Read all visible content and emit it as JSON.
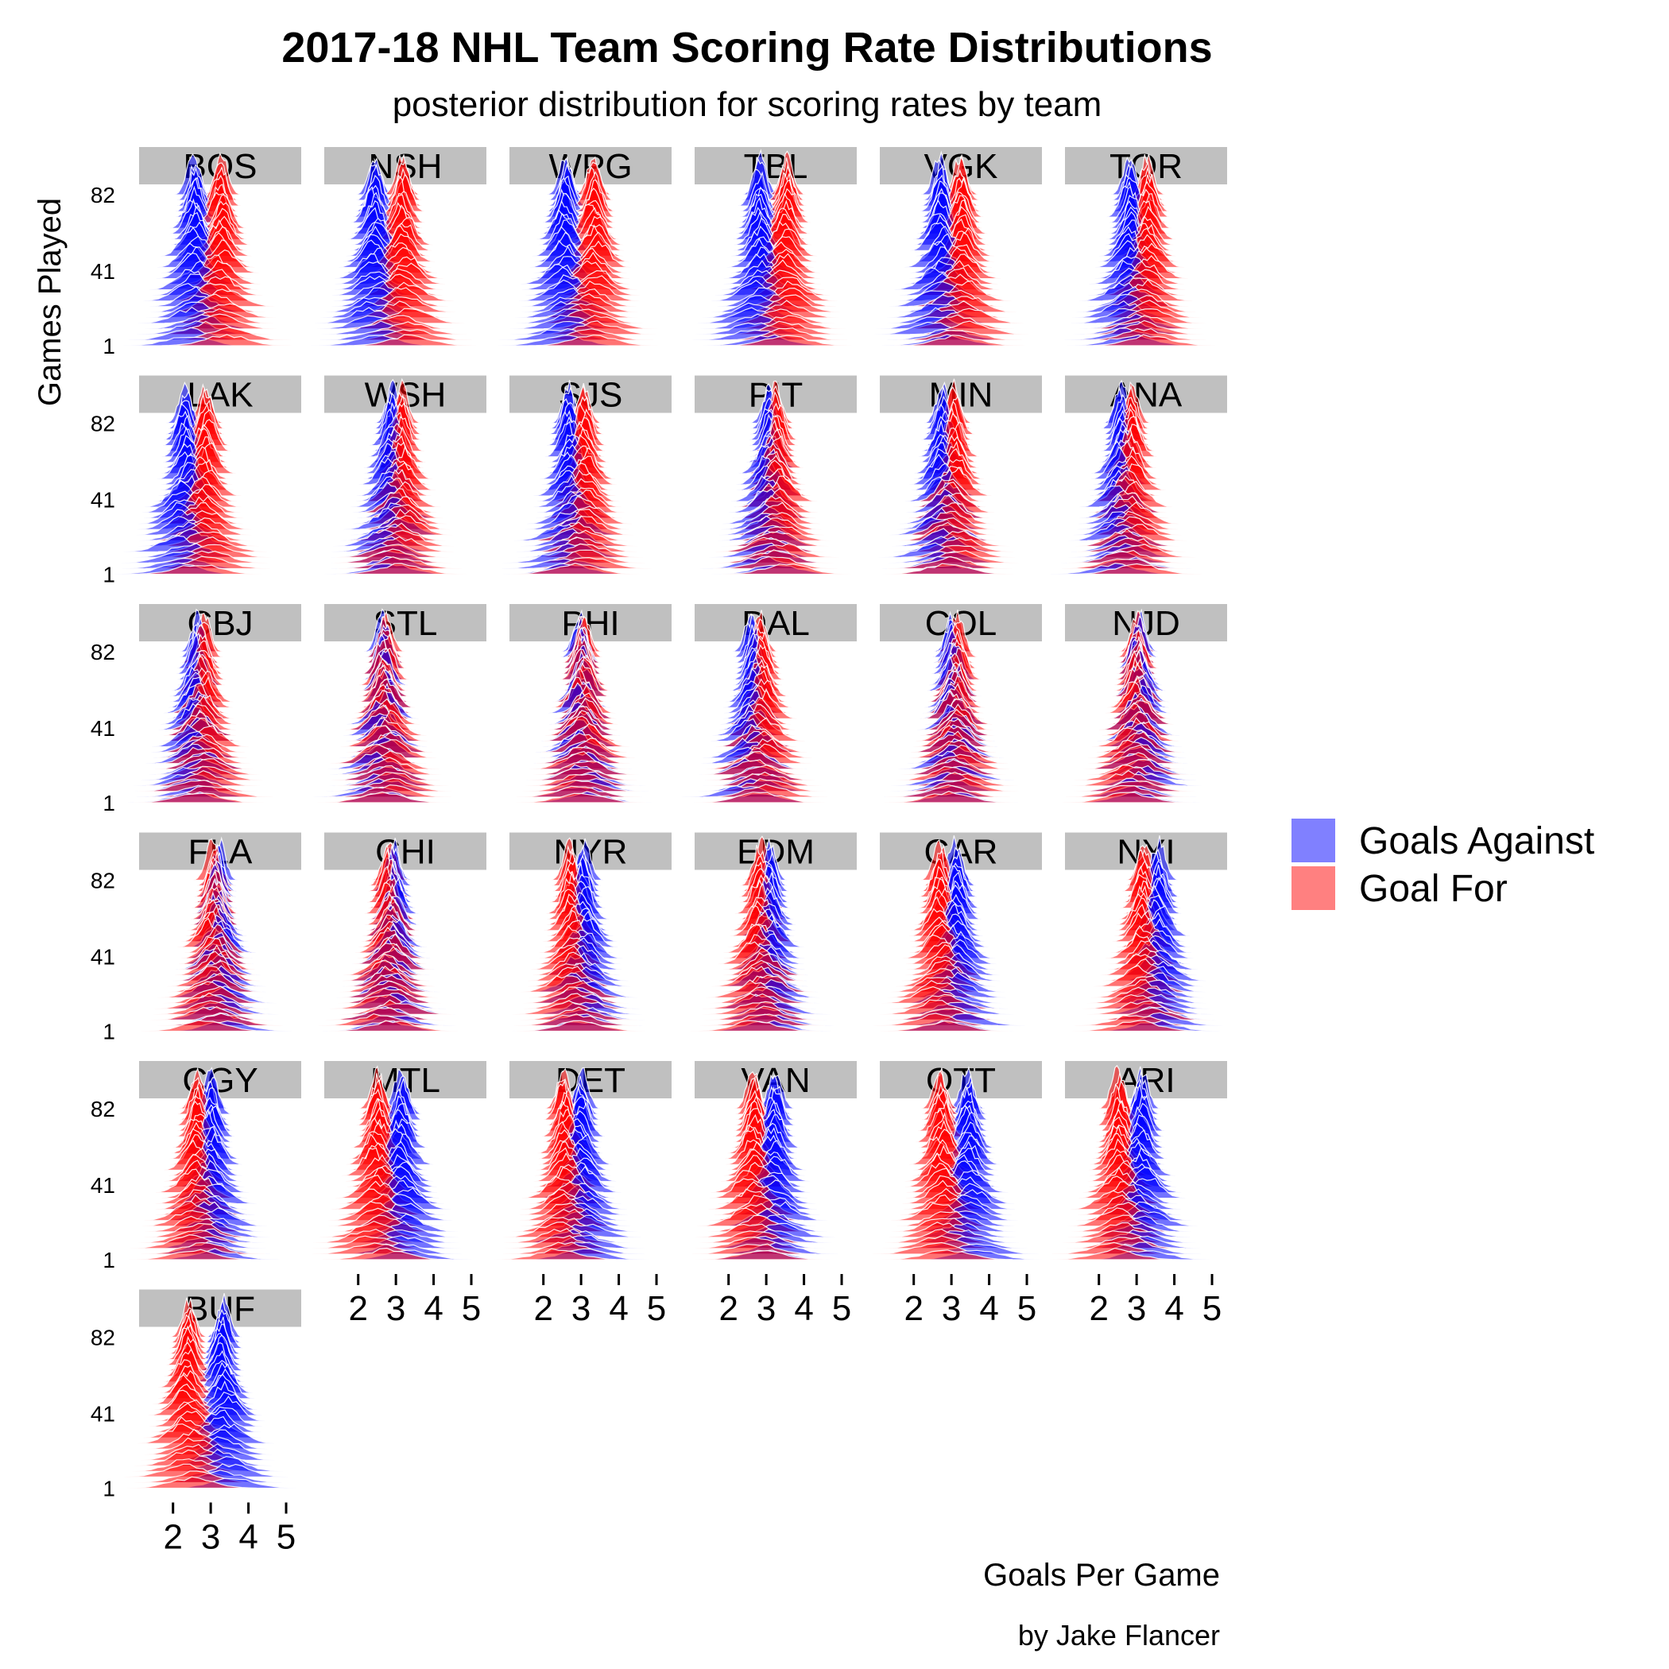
{
  "chart_data": {
    "type": "area",
    "title": "2017-18 NHL Team Scoring Rate Distributions",
    "subtitle": "posterior distribution for scoring rates by team",
    "xlabel": "Goals Per Game",
    "ylabel": "Games Played",
    "caption": "by Jake Flancer",
    "xlim": [
      1.1,
      5.4
    ],
    "x_ticks": [
      "2",
      "3",
      "4",
      "5"
    ],
    "y_ticks": [
      "1",
      "41",
      "82"
    ],
    "ylim": [
      1,
      82
    ],
    "grid": false,
    "facet_layout": "wrap",
    "legend": {
      "position": "right",
      "entries": [
        {
          "label": "Goals Against",
          "color": "#8080ff"
        },
        {
          "label": "Goal For",
          "color": "#ff8080"
        }
      ]
    },
    "colors": {
      "goals_against": "#0000ff",
      "goals_for": "#ff0000",
      "strip": "#c0c0c0",
      "ridge_outline": "#ffffff"
    },
    "teams": [
      {
        "name": "BOS",
        "goals_for": 3.26,
        "goals_against": 2.57
      },
      {
        "name": "NSH",
        "goals_for": 3.18,
        "goals_against": 2.45
      },
      {
        "name": "WPG",
        "goals_for": 3.33,
        "goals_against": 2.57
      },
      {
        "name": "TBL",
        "goals_for": 3.54,
        "goals_against": 2.82
      },
      {
        "name": "VGK",
        "goals_for": 3.27,
        "goals_against": 2.72
      },
      {
        "name": "TOR",
        "goals_for": 3.29,
        "goals_against": 2.82
      },
      {
        "name": "LAK",
        "goals_for": 2.89,
        "goals_against": 2.34
      },
      {
        "name": "WSH",
        "goals_for": 3.12,
        "goals_against": 2.9
      },
      {
        "name": "SJS",
        "goals_for": 3.07,
        "goals_against": 2.7
      },
      {
        "name": "PIT",
        "goals_for": 3.29,
        "goals_against": 3.07
      },
      {
        "name": "MIN",
        "goals_for": 3.09,
        "goals_against": 2.79
      },
      {
        "name": "ANA",
        "goals_for": 2.85,
        "goals_against": 2.6
      },
      {
        "name": "CBJ",
        "goals_for": 2.79,
        "goals_against": 2.65
      },
      {
        "name": "STL",
        "goals_for": 2.7,
        "goals_against": 2.67
      },
      {
        "name": "PHI",
        "goals_for": 3.06,
        "goals_against": 3.0
      },
      {
        "name": "DAL",
        "goals_for": 2.87,
        "goals_against": 2.63
      },
      {
        "name": "COL",
        "goals_for": 3.15,
        "goals_against": 3.04
      },
      {
        "name": "NJD",
        "goals_for": 2.99,
        "goals_against": 3.06
      },
      {
        "name": "FLA",
        "goals_for": 3.07,
        "goals_against": 3.2
      },
      {
        "name": "CHI",
        "goals_for": 2.82,
        "goals_against": 2.93
      },
      {
        "name": "NYR",
        "goals_for": 2.74,
        "goals_against": 3.06
      },
      {
        "name": "EDM",
        "goals_for": 2.85,
        "goals_against": 3.06
      },
      {
        "name": "CAR",
        "goals_for": 2.72,
        "goals_against": 3.11
      },
      {
        "name": "NYI",
        "goals_for": 3.18,
        "goals_against": 3.57
      },
      {
        "name": "CGY",
        "goals_for": 2.66,
        "goals_against": 3.01
      },
      {
        "name": "MTL",
        "goals_for": 2.52,
        "goals_against": 3.15
      },
      {
        "name": "DET",
        "goals_for": 2.56,
        "goals_against": 3.0
      },
      {
        "name": "VAN",
        "goals_for": 2.65,
        "goals_against": 3.21
      },
      {
        "name": "OTT",
        "goals_for": 2.71,
        "goals_against": 3.45
      },
      {
        "name": "ARI",
        "goals_for": 2.52,
        "goals_against": 3.13
      },
      {
        "name": "BUF",
        "goals_for": 2.4,
        "goals_against": 3.34
      }
    ]
  }
}
